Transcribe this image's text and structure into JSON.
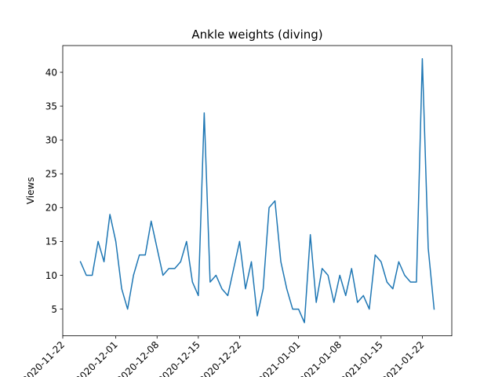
{
  "chart_data": {
    "type": "line",
    "title": "Ankle weights (diving)",
    "xlabel": "",
    "ylabel": "Views",
    "x_start": "2020-11-25",
    "x_end": "2021-01-24",
    "xlim": [
      "2020-11-22",
      "2021-01-27"
    ],
    "ylim": [
      1.05,
      43.95
    ],
    "grid": false,
    "line_color": "#1f77b4",
    "xticks": [
      "2020-11-22",
      "2020-12-01",
      "2020-12-08",
      "2020-12-15",
      "2020-12-22",
      "2021-01-01",
      "2021-01-08",
      "2021-01-15",
      "2021-01-22"
    ],
    "yticks": [
      5,
      10,
      15,
      20,
      25,
      30,
      35,
      40
    ],
    "series": [
      {
        "values": [
          12,
          10,
          10,
          15,
          12,
          19,
          15,
          8,
          5,
          10,
          13,
          13,
          18,
          14,
          10,
          11,
          11,
          12,
          15,
          9,
          7,
          34,
          9,
          10,
          8,
          7,
          11,
          15,
          8,
          12,
          4,
          8,
          20,
          21,
          12,
          8,
          5,
          5,
          3,
          16,
          6,
          11,
          10,
          6,
          10,
          7,
          11,
          6,
          7,
          5,
          13,
          12,
          9,
          8,
          12,
          10,
          9,
          9,
          42,
          14,
          5
        ]
      }
    ]
  }
}
